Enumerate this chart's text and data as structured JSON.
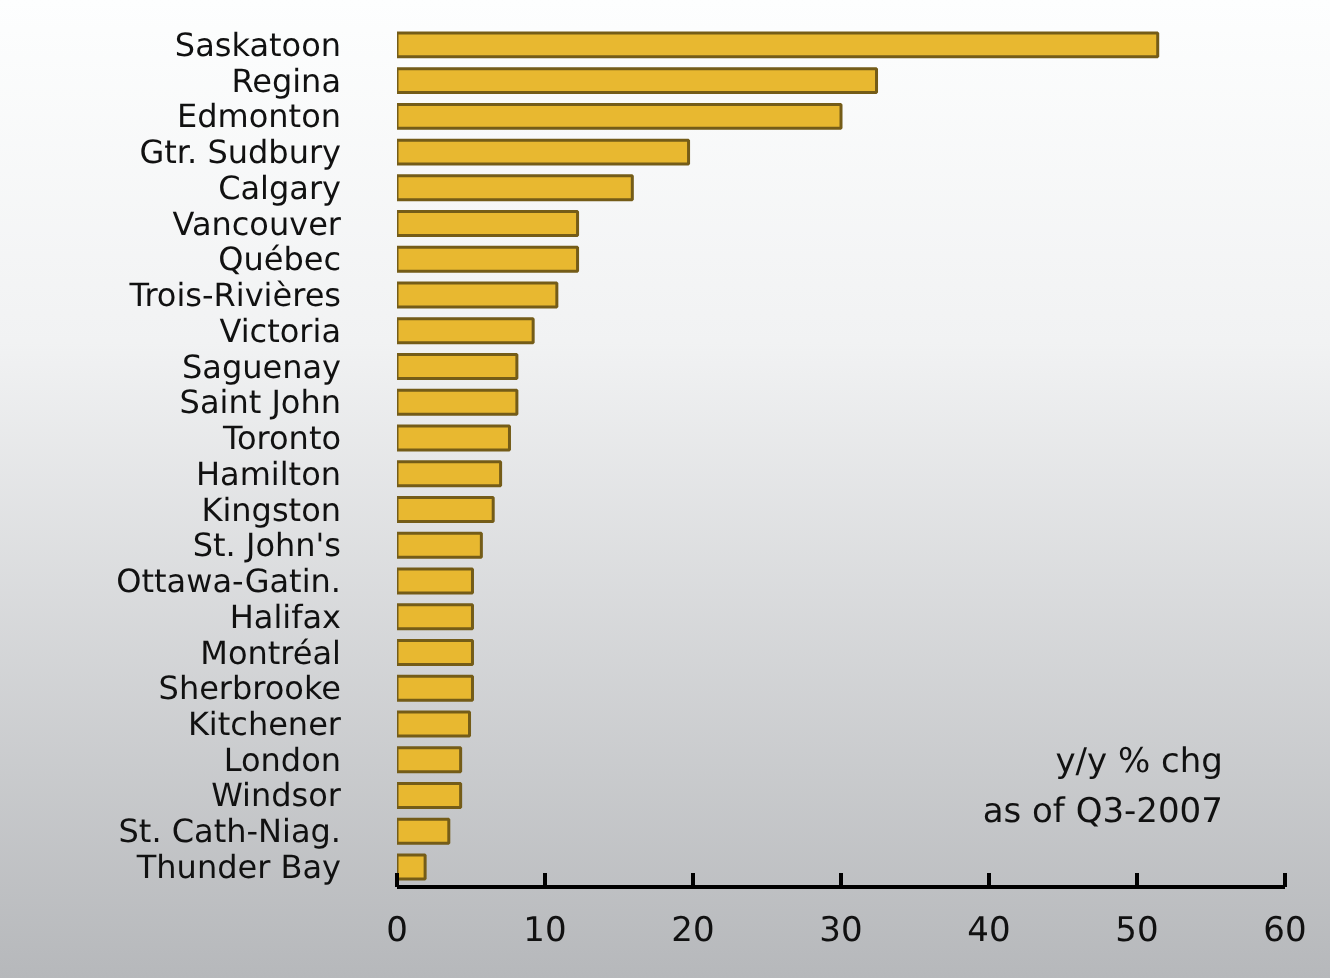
{
  "chart_data": {
    "type": "bar",
    "orientation": "horizontal",
    "categories": [
      "Saskatoon",
      "Regina",
      "Edmonton",
      "Gtr. Sudbury",
      "Calgary",
      "Vancouver",
      "Québec",
      "Trois-Rivières",
      "Victoria",
      "Saguenay",
      "Saint John",
      "Toronto",
      "Hamilton",
      "Kingston",
      "St. John's",
      "Ottawa-Gatin.",
      "Halifax",
      "Montréal",
      "Sherbrooke",
      "Kitchener",
      "London",
      "Windsor",
      "St. Cath-Niag.",
      "Thunder Bay"
    ],
    "values": [
      51.4,
      32.4,
      30.0,
      19.7,
      15.9,
      12.2,
      12.2,
      10.8,
      9.2,
      8.1,
      8.1,
      7.6,
      7.0,
      6.5,
      5.7,
      5.1,
      5.1,
      5.1,
      5.1,
      4.9,
      4.3,
      4.3,
      3.5,
      1.9
    ],
    "color": "#e8b830",
    "xlim": [
      0,
      60
    ],
    "xticks": [
      0,
      10,
      20,
      30,
      40,
      50,
      60
    ],
    "annotations": [
      "y/y % chg",
      "as of Q3-2007"
    ],
    "grid": false
  }
}
